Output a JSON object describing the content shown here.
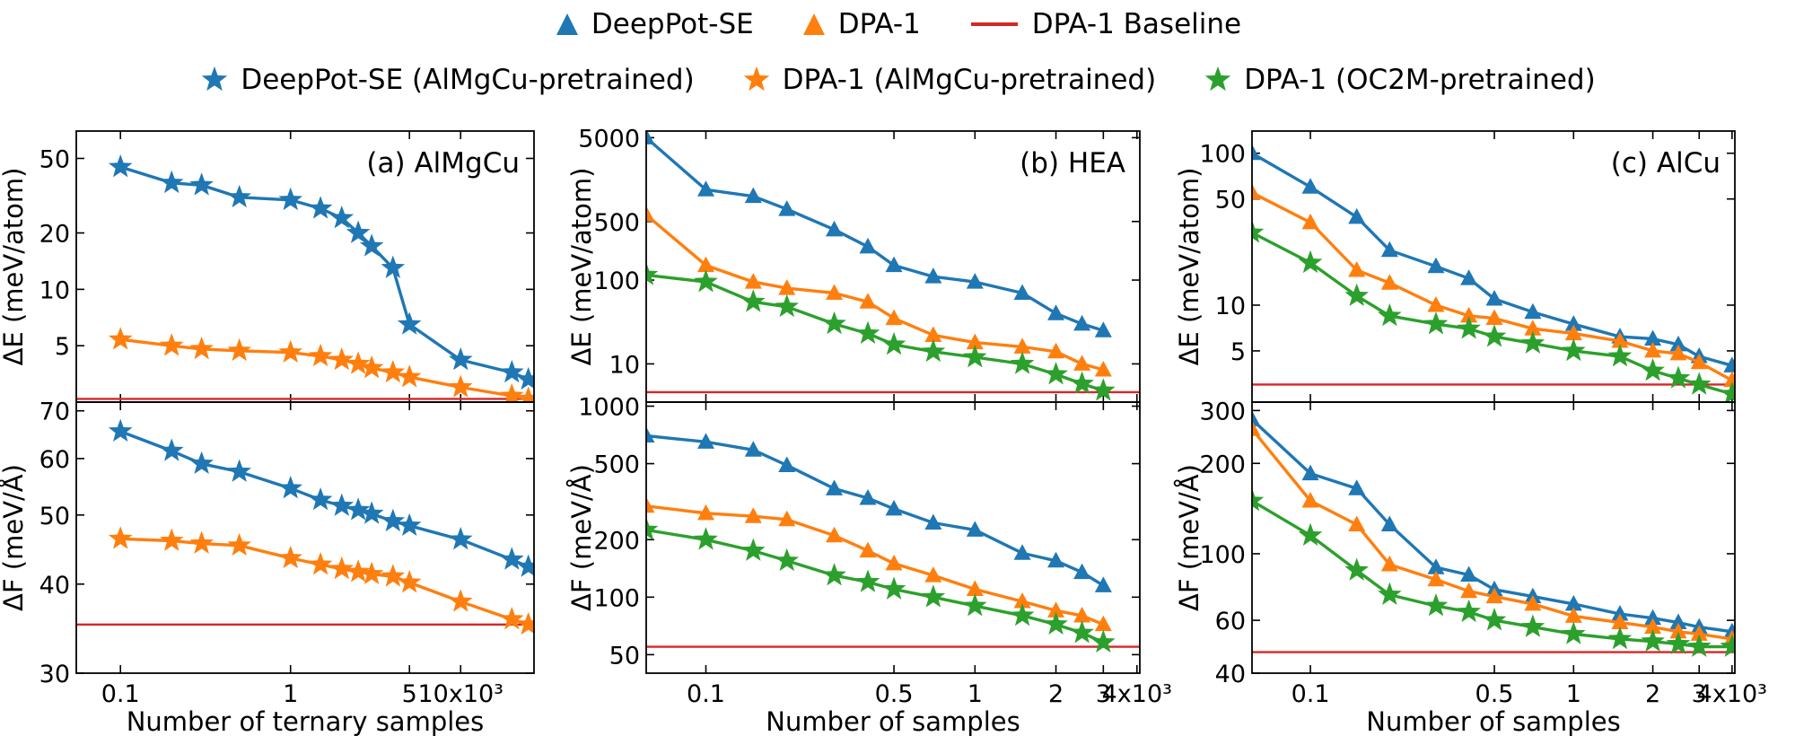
{
  "legend": {
    "row1": [
      {
        "label": "DeepPot-SE",
        "marker": "triangle-icon",
        "color": "#1f77b4"
      },
      {
        "label": "DPA-1",
        "marker": "triangle-icon",
        "color": "#ff7f0e"
      },
      {
        "label": "DPA-1 Baseline",
        "marker": "line-icon",
        "color": "#d62728"
      }
    ],
    "row2": [
      {
        "label": "DeepPot-SE (AlMgCu-pretrained)",
        "marker": "star-icon",
        "color": "#1f77b4"
      },
      {
        "label": "DPA-1 (AlMgCu-pretrained)",
        "marker": "star-icon",
        "color": "#ff7f0e"
      },
      {
        "label": "DPA-1 (OC2M-pretrained)",
        "marker": "star-icon",
        "color": "#2ca02c"
      }
    ]
  },
  "colors": {
    "blue": "#1f77b4",
    "orange": "#ff7f0e",
    "green": "#2ca02c",
    "red": "#d62728"
  },
  "chart_data": [
    {
      "type": "line",
      "panel": "a",
      "row": "E",
      "xscale": "log",
      "yscale": "log",
      "title": "(a) AlMgCu",
      "ylabel": "ΔE (meV/atom)",
      "xlabel": "",
      "xlim": [
        0.055,
        27
      ],
      "ylim": [
        2.5,
        70
      ],
      "xticks": [
        {
          "v": 0.1,
          "t": "0.1"
        },
        {
          "v": 1,
          "t": "1"
        },
        {
          "v": 5,
          "t": "5"
        },
        {
          "v": 10,
          "t": "10x10³"
        }
      ],
      "yticks": [
        {
          "v": 5,
          "t": "5"
        },
        {
          "v": 10,
          "t": "10"
        },
        {
          "v": 20,
          "t": "20"
        },
        {
          "v": 50,
          "t": "50"
        }
      ],
      "baseline": 2.6,
      "series": [
        {
          "name": "DeepPot-SE (AlMgCu-pretrained)",
          "color": "#1f77b4",
          "marker": "star",
          "x": [
            0.1,
            0.2,
            0.3,
            0.5,
            1.0,
            1.5,
            2.0,
            2.5,
            3.0,
            4.0,
            5.0,
            10,
            20,
            25
          ],
          "y": [
            45,
            37,
            36,
            31,
            30,
            27,
            24,
            20,
            17,
            13,
            6.5,
            4.2,
            3.6,
            3.3
          ]
        },
        {
          "name": "DPA-1 (AlMgCu-pretrained)",
          "color": "#ff7f0e",
          "marker": "star",
          "x": [
            0.1,
            0.2,
            0.3,
            0.5,
            1.0,
            1.5,
            2.0,
            2.5,
            3.0,
            4.0,
            5.0,
            10,
            20,
            25
          ],
          "y": [
            5.4,
            5.0,
            4.8,
            4.7,
            4.6,
            4.4,
            4.2,
            4.0,
            3.8,
            3.6,
            3.4,
            3.0,
            2.7,
            2.6
          ]
        }
      ]
    },
    {
      "type": "line",
      "panel": "a",
      "row": "F",
      "xscale": "log",
      "yscale": "log",
      "title": "",
      "ylabel": "ΔF (meV/Å)",
      "xlabel": "Number of ternary samples",
      "xlim": [
        0.055,
        27
      ],
      "ylim": [
        30,
        72
      ],
      "xticks": [
        {
          "v": 0.1,
          "t": "0.1"
        },
        {
          "v": 1,
          "t": "1"
        },
        {
          "v": 5,
          "t": "5"
        },
        {
          "v": 10,
          "t": "10x10³"
        }
      ],
      "yticks": [
        {
          "v": 30,
          "t": "30"
        },
        {
          "v": 40,
          "t": "40"
        },
        {
          "v": 50,
          "t": "50"
        },
        {
          "v": 60,
          "t": "60"
        },
        {
          "v": 70,
          "t": "70"
        }
      ],
      "baseline": 35.1,
      "series": [
        {
          "name": "DeepPot-SE (AlMgCu-pretrained)",
          "color": "#1f77b4",
          "marker": "star",
          "x": [
            0.1,
            0.2,
            0.3,
            0.5,
            1.0,
            1.5,
            2.0,
            2.5,
            3.0,
            4.0,
            5.0,
            10,
            20,
            25
          ],
          "y": [
            65.5,
            61.5,
            59,
            57.5,
            54.5,
            52.5,
            51.5,
            50.8,
            50.2,
            49,
            48.3,
            46.2,
            43.3,
            42.3
          ]
        },
        {
          "name": "DPA-1 (AlMgCu-pretrained)",
          "color": "#ff7f0e",
          "marker": "star",
          "x": [
            0.1,
            0.2,
            0.3,
            0.5,
            1.0,
            1.5,
            2.0,
            2.5,
            3.0,
            4.0,
            5.0,
            10,
            20,
            25
          ],
          "y": [
            46.3,
            46,
            45.6,
            45.3,
            43.5,
            42.6,
            42,
            41.6,
            41.3,
            41,
            40.2,
            37.8,
            35.7,
            35.1
          ]
        }
      ]
    },
    {
      "type": "line",
      "panel": "b",
      "row": "E",
      "xscale": "log",
      "yscale": "log",
      "title": "(b) HEA",
      "ylabel": "ΔE (meV/atom)",
      "xlabel": "",
      "xlim": [
        0.06,
        4.1
      ],
      "ylim": [
        3.5,
        6000
      ],
      "xticks": [
        {
          "v": 0.1,
          "t": "0.1"
        },
        {
          "v": 0.5,
          "t": "0.5"
        },
        {
          "v": 1,
          "t": "1"
        },
        {
          "v": 2,
          "t": "2"
        },
        {
          "v": 3,
          "t": "3"
        },
        {
          "v": 4,
          "t": "4x10³"
        }
      ],
      "yticks": [
        {
          "v": 10,
          "t": "10"
        },
        {
          "v": 100,
          "t": "100"
        },
        {
          "v": 500,
          "t": "500"
        },
        {
          "v": 5000,
          "t": "5000"
        }
      ],
      "baseline": 4.6,
      "series": [
        {
          "name": "DeepPot-SE",
          "color": "#1f77b4",
          "marker": "triangle",
          "x": [
            0.06,
            0.1,
            0.15,
            0.2,
            0.3,
            0.4,
            0.5,
            0.7,
            1.0,
            1.5,
            2.0,
            2.5,
            3.0
          ],
          "y": [
            5000,
            1200,
            1000,
            700,
            400,
            250,
            150,
            110,
            95,
            70,
            40,
            30,
            25
          ]
        },
        {
          "name": "DPA-1",
          "color": "#ff7f0e",
          "marker": "triangle",
          "x": [
            0.06,
            0.1,
            0.15,
            0.2,
            0.3,
            0.4,
            0.5,
            0.7,
            1.0,
            1.5,
            2.0,
            2.5,
            3.0
          ],
          "y": [
            600,
            150,
            95,
            80,
            70,
            55,
            35,
            22,
            18,
            16,
            14,
            10,
            8.5
          ]
        },
        {
          "name": "DPA-1 (OC2M-pretrained)",
          "color": "#2ca02c",
          "marker": "star",
          "x": [
            0.06,
            0.1,
            0.15,
            0.2,
            0.3,
            0.4,
            0.5,
            0.7,
            1.0,
            1.5,
            2.0,
            2.5,
            3.0
          ],
          "y": [
            115,
            95,
            55,
            48,
            30,
            23,
            17,
            14,
            12,
            10,
            7.5,
            5.8,
            4.8
          ]
        }
      ]
    },
    {
      "type": "line",
      "panel": "b",
      "row": "F",
      "xscale": "log",
      "yscale": "log",
      "title": "",
      "ylabel": "ΔF (meV/Å)",
      "xlabel": "Number of samples",
      "xlim": [
        0.06,
        4.1
      ],
      "ylim": [
        40,
        1050
      ],
      "xticks": [
        {
          "v": 0.1,
          "t": "0.1"
        },
        {
          "v": 0.5,
          "t": "0.5"
        },
        {
          "v": 1,
          "t": "1"
        },
        {
          "v": 2,
          "t": "2"
        },
        {
          "v": 3,
          "t": "3"
        },
        {
          "v": 4,
          "t": "4x10³"
        }
      ],
      "yticks": [
        {
          "v": 50,
          "t": "50"
        },
        {
          "v": 100,
          "t": "100"
        },
        {
          "v": 200,
          "t": "200"
        },
        {
          "v": 500,
          "t": "500"
        },
        {
          "v": 1000,
          "t": "1000"
        }
      ],
      "baseline": 55,
      "series": [
        {
          "name": "DeepPot-SE",
          "color": "#1f77b4",
          "marker": "triangle",
          "x": [
            0.06,
            0.1,
            0.15,
            0.2,
            0.3,
            0.4,
            0.5,
            0.7,
            1.0,
            1.5,
            2.0,
            2.5,
            3.0
          ],
          "y": [
            700,
            650,
            590,
            490,
            370,
            330,
            290,
            245,
            225,
            170,
            155,
            135,
            115
          ]
        },
        {
          "name": "DPA-1",
          "color": "#ff7f0e",
          "marker": "triangle",
          "x": [
            0.06,
            0.1,
            0.15,
            0.2,
            0.3,
            0.4,
            0.5,
            0.7,
            1.0,
            1.5,
            2.0,
            2.5,
            3.0
          ],
          "y": [
            300,
            275,
            265,
            255,
            210,
            175,
            150,
            130,
            110,
            95,
            85,
            80,
            72
          ]
        },
        {
          "name": "DPA-1 (OC2M-pretrained)",
          "color": "#2ca02c",
          "marker": "star",
          "x": [
            0.06,
            0.1,
            0.15,
            0.2,
            0.3,
            0.4,
            0.5,
            0.7,
            1.0,
            1.5,
            2.0,
            2.5,
            3.0
          ],
          "y": [
            225,
            200,
            175,
            155,
            130,
            120,
            110,
            100,
            90,
            80,
            72,
            65,
            58
          ]
        }
      ]
    },
    {
      "type": "line",
      "panel": "c",
      "row": "E",
      "xscale": "log",
      "yscale": "log",
      "title": "(c) AlCu",
      "ylabel": "ΔE (meV/atom)",
      "xlabel": "",
      "xlim": [
        0.06,
        4.1
      ],
      "ylim": [
        2.3,
        140
      ],
      "xticks": [
        {
          "v": 0.1,
          "t": "0.1"
        },
        {
          "v": 0.5,
          "t": "0.5"
        },
        {
          "v": 1,
          "t": "1"
        },
        {
          "v": 2,
          "t": "2"
        },
        {
          "v": 3,
          "t": "3"
        },
        {
          "v": 4,
          "t": "4x10³"
        }
      ],
      "yticks": [
        {
          "v": 5,
          "t": "5"
        },
        {
          "v": 10,
          "t": "10"
        },
        {
          "v": 50,
          "t": "50"
        },
        {
          "v": 100,
          "t": "100"
        }
      ],
      "baseline": 3.0,
      "series": [
        {
          "name": "DeepPot-SE",
          "color": "#1f77b4",
          "marker": "triangle",
          "x": [
            0.06,
            0.1,
            0.15,
            0.2,
            0.3,
            0.4,
            0.5,
            0.7,
            1.0,
            1.5,
            2.0,
            2.5,
            3.0,
            4.0
          ],
          "y": [
            100,
            60,
            38,
            23,
            18,
            15,
            11,
            9,
            7.5,
            6.2,
            6.0,
            5.5,
            4.6,
            4.0
          ]
        },
        {
          "name": "DPA-1",
          "color": "#ff7f0e",
          "marker": "triangle",
          "x": [
            0.06,
            0.1,
            0.15,
            0.2,
            0.3,
            0.4,
            0.5,
            0.7,
            1.0,
            1.5,
            2.0,
            2.5,
            3.0,
            4.0
          ],
          "y": [
            55,
            35,
            17,
            14,
            10,
            8.5,
            8.2,
            7.0,
            6.5,
            5.8,
            5.0,
            4.8,
            4.2,
            3.2
          ]
        },
        {
          "name": "DPA-1 (OC2M-pretrained)",
          "color": "#2ca02c",
          "marker": "star",
          "x": [
            0.06,
            0.1,
            0.15,
            0.2,
            0.3,
            0.4,
            0.5,
            0.7,
            1.0,
            1.5,
            2.0,
            2.5,
            3.0,
            4.0
          ],
          "y": [
            30,
            19,
            11.5,
            8.5,
            7.5,
            7.0,
            6.2,
            5.6,
            5.0,
            4.6,
            3.7,
            3.3,
            3.0,
            2.6
          ]
        }
      ]
    },
    {
      "type": "line",
      "panel": "c",
      "row": "F",
      "xscale": "log",
      "yscale": "log",
      "title": "",
      "ylabel": "ΔF (meV/Å)",
      "xlabel": "Number of samples",
      "xlim": [
        0.06,
        4.1
      ],
      "ylim": [
        40,
        320
      ],
      "xticks": [
        {
          "v": 0.1,
          "t": "0.1"
        },
        {
          "v": 0.5,
          "t": "0.5"
        },
        {
          "v": 1,
          "t": "1"
        },
        {
          "v": 2,
          "t": "2"
        },
        {
          "v": 3,
          "t": "3"
        },
        {
          "v": 4,
          "t": "4x10³"
        }
      ],
      "yticks": [
        {
          "v": 40,
          "t": "40"
        },
        {
          "v": 60,
          "t": "60"
        },
        {
          "v": 100,
          "t": "100"
        },
        {
          "v": 200,
          "t": "200"
        },
        {
          "v": 300,
          "t": "300"
        }
      ],
      "baseline": 47,
      "series": [
        {
          "name": "DeepPot-SE",
          "color": "#1f77b4",
          "marker": "triangle",
          "x": [
            0.06,
            0.1,
            0.15,
            0.2,
            0.3,
            0.4,
            0.5,
            0.7,
            1.0,
            1.5,
            2.0,
            2.5,
            3.0,
            4.0
          ],
          "y": [
            280,
            185,
            165,
            125,
            90,
            85,
            76,
            72,
            68,
            63,
            61,
            59,
            57,
            55
          ]
        },
        {
          "name": "DPA-1",
          "color": "#ff7f0e",
          "marker": "triangle",
          "x": [
            0.06,
            0.1,
            0.15,
            0.2,
            0.3,
            0.4,
            0.5,
            0.7,
            1.0,
            1.5,
            2.0,
            2.5,
            3.0,
            4.0
          ],
          "y": [
            260,
            150,
            125,
            92,
            82,
            75,
            72,
            68,
            62,
            59,
            57,
            55,
            54,
            52
          ]
        },
        {
          "name": "DPA-1 (OC2M-pretrained)",
          "color": "#2ca02c",
          "marker": "star",
          "x": [
            0.06,
            0.1,
            0.15,
            0.2,
            0.3,
            0.4,
            0.5,
            0.7,
            1.0,
            1.5,
            2.0,
            2.5,
            3.0,
            4.0
          ],
          "y": [
            150,
            115,
            88,
            73,
            67,
            64,
            60,
            57,
            54,
            52,
            51,
            50,
            49,
            49
          ]
        }
      ]
    }
  ]
}
